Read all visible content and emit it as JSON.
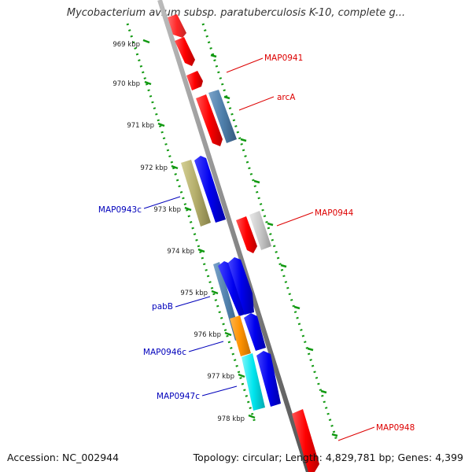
{
  "title": "Mycobacterium avium subsp. paratuberculosis K-10, complete g...",
  "footer": {
    "accession": "Accession: NC_002944",
    "stats": "Topology: circular; Length: 4,829,781 bp; Genes: 4,399"
  },
  "axis": {
    "kbp_labels": [
      "969 kbp",
      "970 kbp",
      "971 kbp",
      "972 kbp",
      "973 kbp",
      "974 kbp",
      "975 kbp",
      "976 kbp",
      "977 kbp",
      "978 kbp"
    ]
  },
  "gene_labels": [
    {
      "text": "MAP0941",
      "color": "#dd0000"
    },
    {
      "text": "arcA",
      "color": "#dd0000"
    },
    {
      "text": "MAP0944",
      "color": "#dd0000"
    },
    {
      "text": "MAP0948",
      "color": "#dd0000"
    },
    {
      "text": "MAP0943c",
      "color": "#0000bb"
    },
    {
      "text": "pabB",
      "color": "#0000bb"
    },
    {
      "text": "MAP0946c",
      "color": "#0000bb"
    },
    {
      "text": "MAP0947c",
      "color": "#0000bb"
    }
  ],
  "colors": {
    "forward": "#ff0000",
    "reverse": "#0000ee",
    "steelblue": "#4f7fab",
    "olive": "#b3ad6a",
    "gray": "#c8c8c8",
    "orange": "#ff9200",
    "cyan": "#00e5ee",
    "backbone": "#888888",
    "tick": "#119911"
  }
}
